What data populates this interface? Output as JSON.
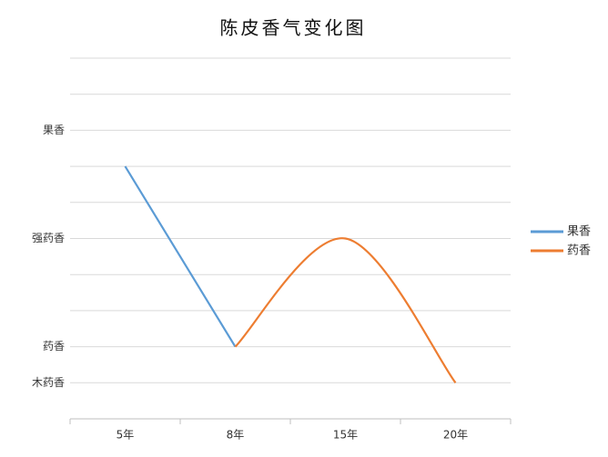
{
  "chart_data": {
    "type": "line",
    "title": "陈皮香气变化图",
    "categories": [
      "5年",
      "8年",
      "15年",
      "20年"
    ],
    "series": [
      {
        "name": "果香",
        "color": "#5b9bd5",
        "values": [
          7,
          2,
          null,
          null
        ]
      },
      {
        "name": "药香",
        "color": "#ed7d31",
        "values": [
          null,
          2,
          5,
          1
        ]
      }
    ],
    "ylim": [
      0,
      10
    ],
    "yticks": [
      {
        "value": 0,
        "label": null
      },
      {
        "value": 1,
        "label": "木药香"
      },
      {
        "value": 2,
        "label": "药香"
      },
      {
        "value": 3,
        "label": null
      },
      {
        "value": 4,
        "label": null
      },
      {
        "value": 5,
        "label": "强药香"
      },
      {
        "value": 6,
        "label": null
      },
      {
        "value": 7,
        "label": null
      },
      {
        "value": 8,
        "label": "果香"
      },
      {
        "value": 9,
        "label": null
      },
      {
        "value": 10,
        "label": null
      }
    ],
    "grid": true,
    "legend": "right"
  }
}
